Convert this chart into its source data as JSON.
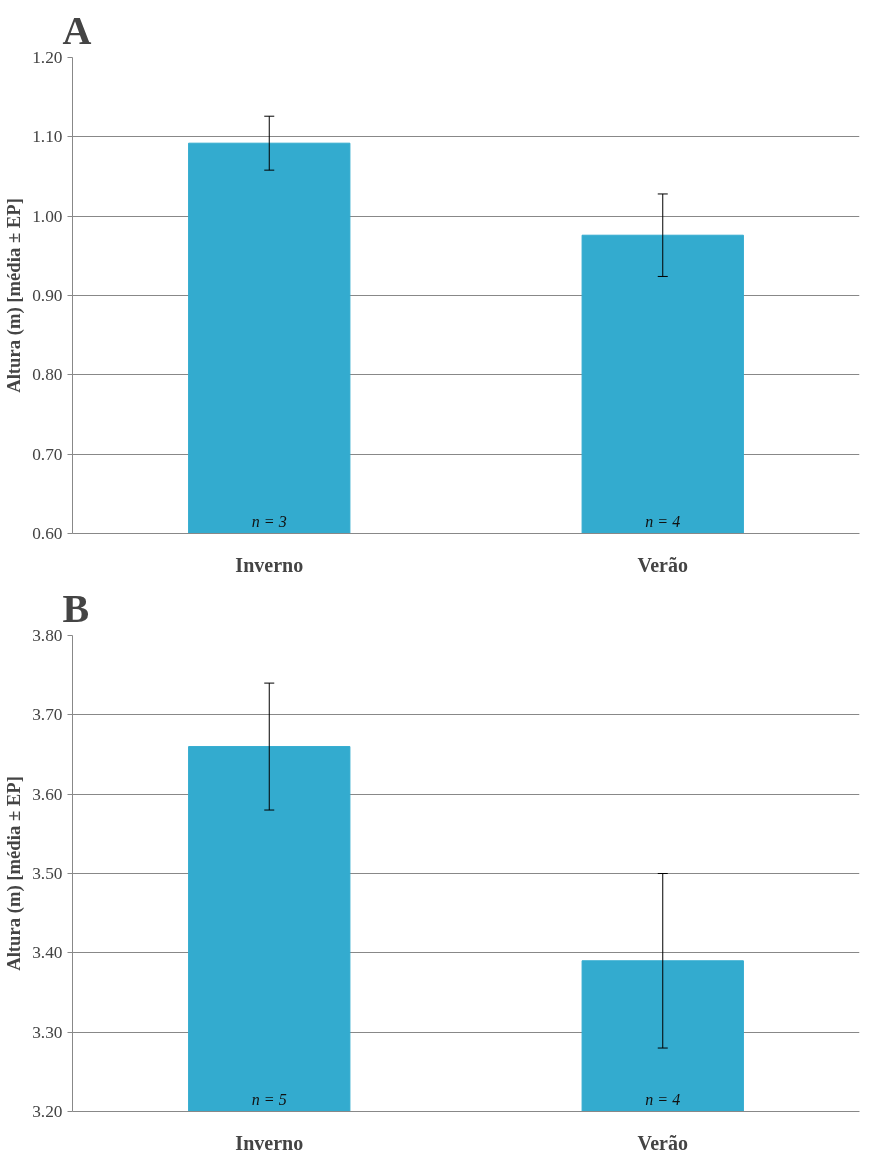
{
  "chart_data": [
    {
      "type": "bar",
      "title": "A",
      "ylabel": "Altura (m) [média ± EP]",
      "categories": [
        "Inverno",
        "Verão"
      ],
      "values": [
        1.092,
        0.976
      ],
      "errors": [
        0.034,
        0.052
      ],
      "color": "#33abcf",
      "ylim": [
        0.6,
        1.2
      ],
      "yticks": [
        {
          "value": 0.6,
          "label": "0.60"
        },
        {
          "value": 0.7,
          "label": "0.70"
        },
        {
          "value": 0.8,
          "label": "0.80"
        },
        {
          "value": 0.9,
          "label": "0.90"
        },
        {
          "value": 1.0,
          "label": "1.00"
        },
        {
          "value": 1.1,
          "label": "1.10"
        },
        {
          "value": 1.2,
          "label": "1.20"
        }
      ],
      "grid": "y",
      "annotations": [
        {
          "text": "n = 3",
          "x": "Inverno",
          "y": 0.6
        },
        {
          "text": "n = 4",
          "x": "Verão",
          "y": 0.6
        }
      ]
    },
    {
      "type": "bar",
      "title": "B",
      "ylabel": "Altura (m) [média ± EP]",
      "categories": [
        "Inverno",
        "Verão"
      ],
      "values": [
        3.66,
        3.39
      ],
      "errors": [
        0.08,
        0.11
      ],
      "color": "#33abcf",
      "ylim": [
        3.2,
        3.8
      ],
      "yticks": [
        {
          "value": 3.2,
          "label": "3.20"
        },
        {
          "value": 3.3,
          "label": "3.30"
        },
        {
          "value": 3.4,
          "label": "3.40"
        },
        {
          "value": 3.5,
          "label": "3.50"
        },
        {
          "value": 3.6,
          "label": "3.60"
        },
        {
          "value": 3.7,
          "label": "3.70"
        },
        {
          "value": 3.8,
          "label": "3.80"
        }
      ],
      "grid": "y",
      "annotations": [
        {
          "text": "n = 5",
          "x": "Inverno",
          "y": 3.2
        },
        {
          "text": "n = 4",
          "x": "Verão",
          "y": 3.2
        }
      ]
    }
  ]
}
